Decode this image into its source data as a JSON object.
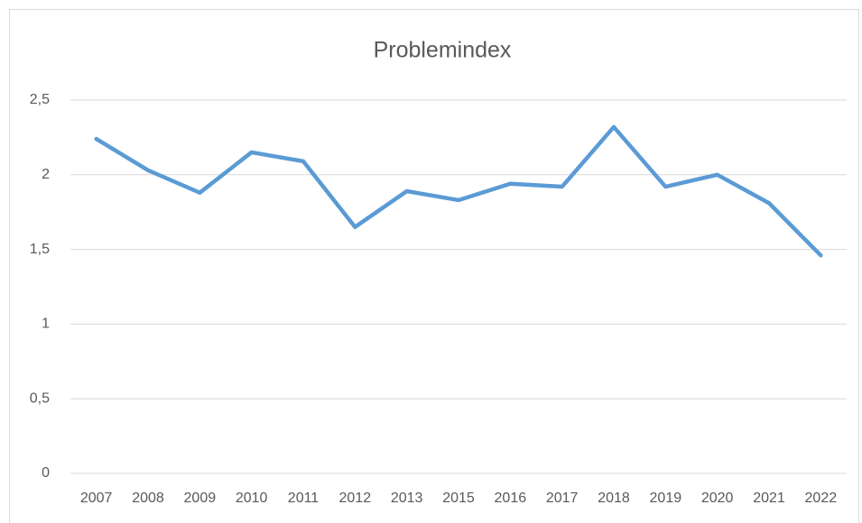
{
  "chart_data": {
    "type": "line",
    "title": "Problemindex",
    "categories": [
      "2007",
      "2008",
      "2009",
      "2010",
      "2011",
      "2012",
      "2013",
      "2015",
      "2016",
      "2017",
      "2018",
      "2019",
      "2020",
      "2021",
      "2022"
    ],
    "series": [
      {
        "name": "Problemindex",
        "color": "#5b9bd5",
        "values": [
          2.24,
          2.03,
          1.88,
          2.15,
          2.09,
          1.65,
          1.89,
          1.83,
          1.94,
          1.92,
          2.32,
          1.92,
          2.0,
          1.81,
          1.46
        ]
      }
    ],
    "ylim": [
      0,
      2.5
    ],
    "yticks": [
      0,
      {
        "value": 0.5,
        "label": "0,5"
      },
      1,
      {
        "value": 1.5,
        "label": "1,5"
      },
      2,
      {
        "value": 2.5,
        "label": "2,5"
      }
    ],
    "grid": true,
    "legend": false
  }
}
